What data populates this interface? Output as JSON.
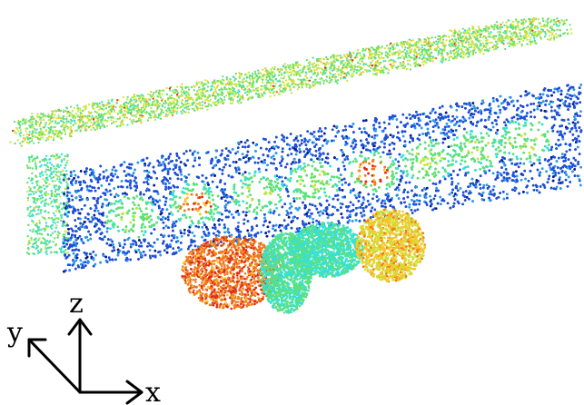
{
  "figure": {
    "description_visible_text": "none",
    "axis_labels": {
      "x": "x",
      "y": "y",
      "z": "z"
    },
    "colormap": [
      "#0a1a8c",
      "#1f4fd8",
      "#2a9be8",
      "#35e0d8",
      "#5fe07a",
      "#c8e63c",
      "#f5c528",
      "#f07a1c",
      "#e02a14"
    ]
  }
}
